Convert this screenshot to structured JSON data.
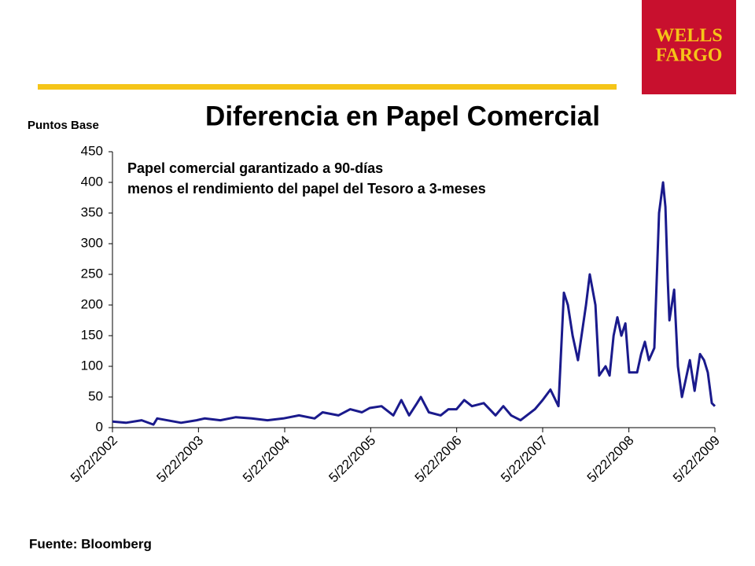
{
  "logo": {
    "line1": "WELLS",
    "line2": "FARGO"
  },
  "chart_data": {
    "type": "line",
    "title": "Diferencia en Papel Comercial",
    "y_label": "Puntos Base",
    "annotations": [
      "Papel comercial garantizado a 90-días",
      "menos el rendimiento del papel del Tesoro a 3-meses"
    ],
    "x": [
      "5/22/2002",
      "7/18/2002",
      "9/23/2002",
      "11/12/2002",
      "11/28/2002",
      "3/9/2003",
      "5/14/2003",
      "6/17/2003",
      "8/23/2003",
      "10/28/2003",
      "1/3/2004",
      "3/10/2004",
      "5/16/2004",
      "7/22/2004",
      "9/26/2004",
      "10/30/2004",
      "1/5/2005",
      "2/24/2005",
      "4/15/2005",
      "5/18/2005",
      "7/7/2005",
      "8/26/2005",
      "9/29/2005",
      "11/1/2005",
      "12/5/2005",
      "12/21/2005",
      "1/24/2006",
      "3/15/2006",
      "4/17/2006",
      "5/21/2006",
      "6/23/2006",
      "7/26/2006",
      "9/14/2006",
      "11/3/2006",
      "12/6/2006",
      "1/8/2007",
      "2/17/2007",
      "4/19/2007",
      "5/22/2007",
      "6/24/2007",
      "7/28/2007",
      "8/20/2007",
      "9/6/2007",
      "9/26/2007",
      "10/19/2007",
      "11/22/2007",
      "12/8/2007",
      "1/1/2008",
      "1/17/2008",
      "2/13/2008",
      "3/1/2008",
      "3/18/2008",
      "4/3/2008",
      "4/20/2008",
      "5/7/2008",
      "5/23/2008",
      "6/26/2008",
      "7/13/2008",
      "7/29/2008",
      "8/15/2008",
      "9/7/2008",
      "9/27/2008",
      "10/14/2008",
      "10/24/2008",
      "11/3/2008",
      "11/10/2008",
      "11/30/2008",
      "12/16/2008",
      "1/2/2009",
      "1/19/2009",
      "2/5/2009",
      "2/25/2009",
      "3/20/2009",
      "4/6/2009",
      "4/22/2009",
      "5/9/2009",
      "5/22/2009"
    ],
    "series": [
      {
        "name": "Diferencia",
        "color": "#1a1a8c",
        "values": [
          10,
          8,
          12,
          5,
          15,
          8,
          12,
          15,
          12,
          17,
          15,
          12,
          15,
          20,
          15,
          25,
          20,
          30,
          25,
          32,
          35,
          20,
          45,
          20,
          40,
          50,
          25,
          20,
          30,
          30,
          45,
          35,
          40,
          20,
          35,
          20,
          12,
          30,
          45,
          62,
          35,
          220,
          200,
          150,
          110,
          200,
          250,
          200,
          85,
          100,
          85,
          150,
          180,
          150,
          170,
          90,
          90,
          120,
          140,
          110,
          130,
          350,
          400,
          360,
          240,
          175,
          225,
          100,
          50,
          80,
          110,
          60,
          120,
          110,
          90,
          40,
          35
        ]
      }
    ],
    "xlim": [
      "5/22/2002",
      "5/22/2009"
    ],
    "xticks": [
      "5/22/2002",
      "5/22/2003",
      "5/22/2004",
      "5/22/2005",
      "5/22/2006",
      "5/22/2007",
      "5/22/2008",
      "5/22/2009"
    ],
    "ylim": [
      0,
      450
    ],
    "yticks": [
      0,
      50,
      100,
      150,
      200,
      250,
      300,
      350,
      400,
      450
    ]
  },
  "source": "Fuente: Bloomberg"
}
